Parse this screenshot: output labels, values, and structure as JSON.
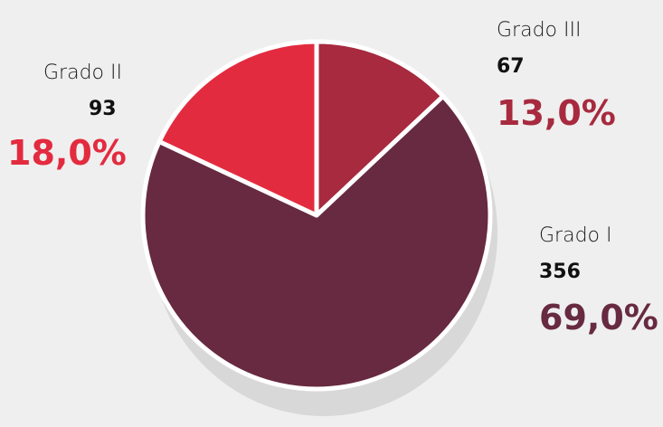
{
  "chart_data": {
    "type": "pie",
    "categories": [
      "Grado I",
      "Grado II",
      "Grado III"
    ],
    "values": [
      356,
      93,
      67
    ],
    "percent_labels": [
      "69,0%",
      "18,0%",
      "13,0%"
    ],
    "colors": [
      "#672a40",
      "#e32b3f",
      "#a72a3f"
    ],
    "title": "",
    "legend": "none"
  }
}
